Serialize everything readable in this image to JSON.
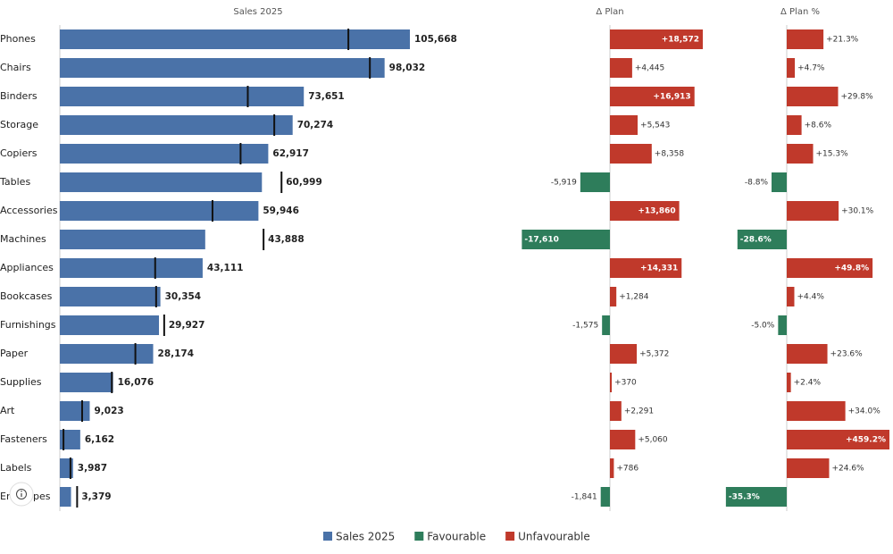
{
  "chart_data": [
    {
      "type": "bar",
      "title": "Sales 2025",
      "categories": [
        "Phones",
        "Chairs",
        "Binders",
        "Storage",
        "Copiers",
        "Tables",
        "Accessories",
        "Machines",
        "Appliances",
        "Bookcases",
        "Furnishings",
        "Paper",
        "Supplies",
        "Art",
        "Fasteners",
        "Labels",
        "Envelopes"
      ],
      "values": [
        105668,
        98032,
        73651,
        70274,
        62917,
        60999,
        59946,
        43888,
        43111,
        30354,
        29927,
        28174,
        16076,
        9023,
        6162,
        3987,
        3379
      ],
      "value_labels": [
        "105,668",
        "98,032",
        "73,651",
        "70,274",
        "62,917",
        "60,999",
        "59,946",
        "43,888",
        "43,111",
        "30,354",
        "29,927",
        "28,174",
        "16,076",
        "9,023",
        "6,162",
        "3,987",
        "3,379"
      ],
      "plan": [
        87096,
        93587,
        56738,
        64731,
        54559,
        66918,
        46086,
        61498,
        28780,
        29070,
        31502,
        22802,
        15706,
        6732,
        1102,
        3201,
        5220
      ],
      "color": "#4a72a8"
    },
    {
      "type": "variance",
      "title": "Δ Plan",
      "values": [
        18572,
        4445,
        16913,
        5543,
        8358,
        -5919,
        13860,
        -17610,
        14331,
        1284,
        -1575,
        5372,
        370,
        2291,
        5060,
        786,
        -1841
      ],
      "value_labels": [
        "+18,572",
        "+4,445",
        "+16,913",
        "+5,543",
        "+8,358",
        "-5,919",
        "+13,860",
        "-17,610",
        "+14,331",
        "+1,284",
        "-1,575",
        "+5,372",
        "+370",
        "+2,291",
        "+5,060",
        "+786",
        "-1,841"
      ]
    },
    {
      "type": "variance",
      "title": "Δ Plan %",
      "values": [
        21.3,
        4.7,
        29.8,
        8.6,
        15.3,
        -8.8,
        30.1,
        -28.6,
        49.8,
        4.4,
        -5.0,
        23.6,
        2.4,
        34.0,
        459.2,
        24.6,
        -35.3
      ],
      "value_labels": [
        "+21.3%",
        "+4.7%",
        "+29.8%",
        "+8.6%",
        "+15.3%",
        "-8.8%",
        "+30.1%",
        "-28.6%",
        "+49.8%",
        "+4.4%",
        "-5.0%",
        "+23.6%",
        "+2.4%",
        "+34.0%",
        "+459.2%",
        "+24.6%",
        "-35.3%"
      ]
    }
  ],
  "legend": [
    {
      "name": "Sales 2025",
      "color": "#4a72a8"
    },
    {
      "name": "Favourable",
      "color": "#2e7d5b"
    },
    {
      "name": "Unfavourable",
      "color": "#c0392b"
    }
  ]
}
